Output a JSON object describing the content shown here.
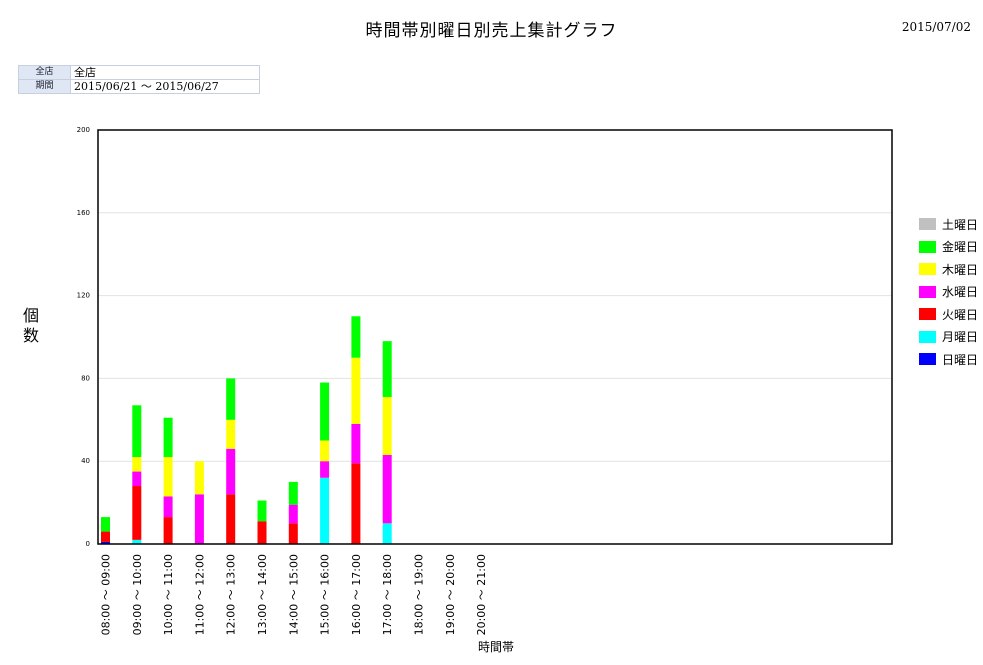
{
  "header": {
    "title": "時間帯別曜日別売上集計グラフ",
    "date": "2015/07/02"
  },
  "filters": {
    "store_label": "全店",
    "store_value": "全店",
    "period_label": "期間",
    "period_value": "2015/06/21 〜 2015/06/27"
  },
  "chart_data": {
    "type": "bar",
    "stacked": true,
    "ylabel": "個数",
    "xlabel": "時間帯",
    "ylim": [
      0,
      200
    ],
    "yticks": [
      0,
      40,
      80,
      120,
      160,
      200
    ],
    "grid": true,
    "legend_position": "right",
    "categories": [
      "08:00 〜 09:00",
      "09:00 〜 10:00",
      "10:00 〜 11:00",
      "11:00 〜 12:00",
      "12:00 〜 13:00",
      "13:00 〜 14:00",
      "14:00 〜 15:00",
      "15:00 〜 16:00",
      "16:00 〜 17:00",
      "17:00 〜 18:00",
      "18:00 〜 19:00",
      "19:00 〜 20:00",
      "20:00 〜 21:00"
    ],
    "series": [
      {
        "name": "日曜日",
        "color": "#0000ff",
        "values": [
          1,
          0,
          0,
          0,
          0,
          0,
          0,
          0,
          0,
          0,
          0,
          0,
          0
        ]
      },
      {
        "name": "月曜日",
        "color": "#00ffff",
        "values": [
          0,
          2,
          0,
          0,
          0,
          0,
          0,
          32,
          0,
          10,
          0,
          0,
          0
        ]
      },
      {
        "name": "火曜日",
        "color": "#ff0000",
        "values": [
          5,
          26,
          13,
          0,
          24,
          11,
          10,
          0,
          39,
          0,
          0,
          0,
          0
        ]
      },
      {
        "name": "水曜日",
        "color": "#ff00ff",
        "values": [
          0,
          7,
          10,
          24,
          22,
          0,
          9,
          8,
          19,
          33,
          0,
          0,
          0
        ]
      },
      {
        "name": "木曜日",
        "color": "#ffff00",
        "values": [
          0,
          7,
          19,
          16,
          14,
          0,
          0,
          10,
          32,
          28,
          0,
          0,
          0
        ]
      },
      {
        "name": "金曜日",
        "color": "#00ff00",
        "values": [
          7,
          25,
          19,
          0,
          20,
          10,
          11,
          28,
          20,
          27,
          0,
          0,
          0
        ]
      },
      {
        "name": "土曜日",
        "color": "#c0c0c0",
        "values": [
          0,
          0,
          0,
          0,
          0,
          0,
          0,
          0,
          0,
          0,
          0,
          0,
          0
        ]
      }
    ]
  }
}
